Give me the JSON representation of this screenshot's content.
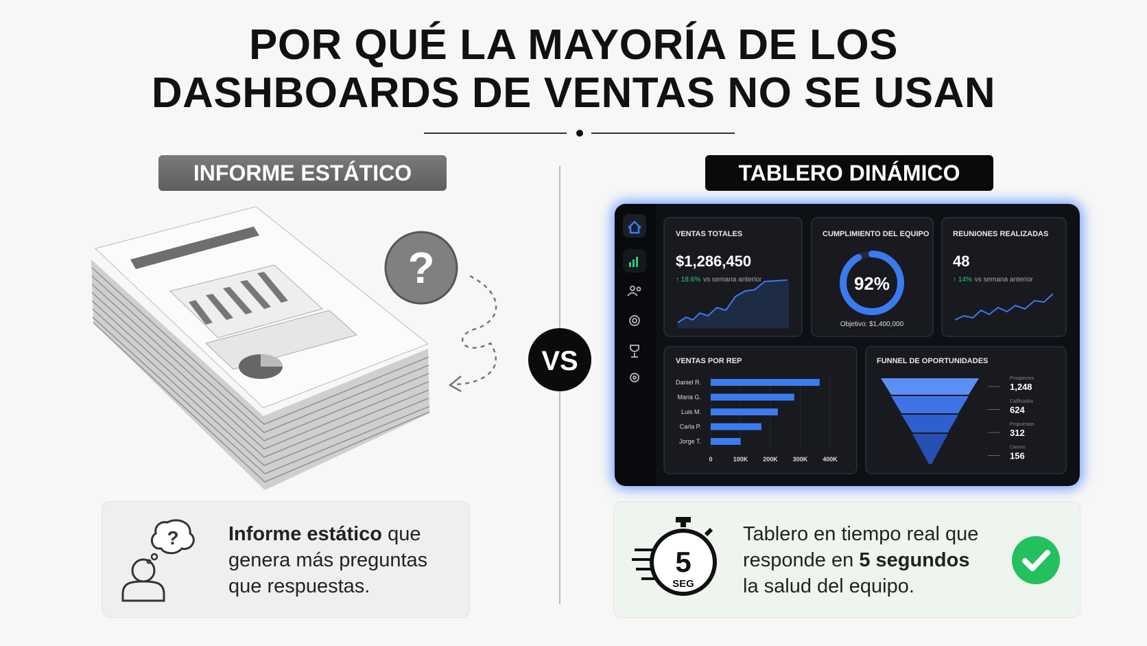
{
  "header": {
    "title_line1": "POR QUÉ LA MAYORÍA DE LOS",
    "title_line2": "DASHBOARDS DE VENTAS NO SE USAN"
  },
  "vs": "VS",
  "left": {
    "label": "INFORME ESTÁTICO",
    "caption": {
      "line1_bold": "Informe estático",
      "line1_rest": "que",
      "line2": "genera más preguntas",
      "line3": "que respuestas."
    }
  },
  "right": {
    "label": "TABLERO DINÁMICO",
    "dashboard": {
      "kpis": [
        {
          "title": "VENTAS TOTALES",
          "value": "$1,286,450",
          "change": "18.6%",
          "change_text": "vs semana anterior"
        },
        {
          "title": "CUMPLIMIENTO DEL EQUIPO",
          "progress": 92,
          "progress_label": "92%",
          "target": "Objetivo: $1,400,000"
        },
        {
          "title": "REUNIONES REALIZADAS",
          "value": "48",
          "change": "14%",
          "change_text": "vs semana anterior"
        }
      ],
      "reps_chart": {
        "title": "VENTAS POR REP",
        "categories": [
          "Daniel R.",
          "Maria G.",
          "Luis M.",
          "Carla P.",
          "Jorge T."
        ],
        "values": [
          365000,
          280000,
          225000,
          170000,
          100000
        ],
        "color": "#3b7bf0",
        "xlim": [
          0,
          400000
        ],
        "xticks": [
          0,
          {
            "value": 100000,
            "label": "100K"
          },
          {
            "value": 200000,
            "label": "200K"
          },
          {
            "value": 300000,
            "label": "300K"
          },
          {
            "value": 400000,
            "label": "400K"
          }
        ]
      },
      "funnel": {
        "title": "FUNNEL DE OPORTUNIDADES",
        "stages": [
          {
            "name": "Prospectos",
            "value": "1,248"
          },
          {
            "name": "Calificados",
            "value": "624"
          },
          {
            "name": "Propuestas",
            "value": "312"
          },
          {
            "name": "Cierres",
            "value": "156"
          }
        ]
      }
    },
    "caption": {
      "timer_number": "5",
      "timer_unit": "SEG",
      "line1": "Tablero en tiempo real que",
      "line2_rest": "responde en",
      "line2_bold": "5 segundos",
      "line3": "la salud del equipo."
    }
  }
}
